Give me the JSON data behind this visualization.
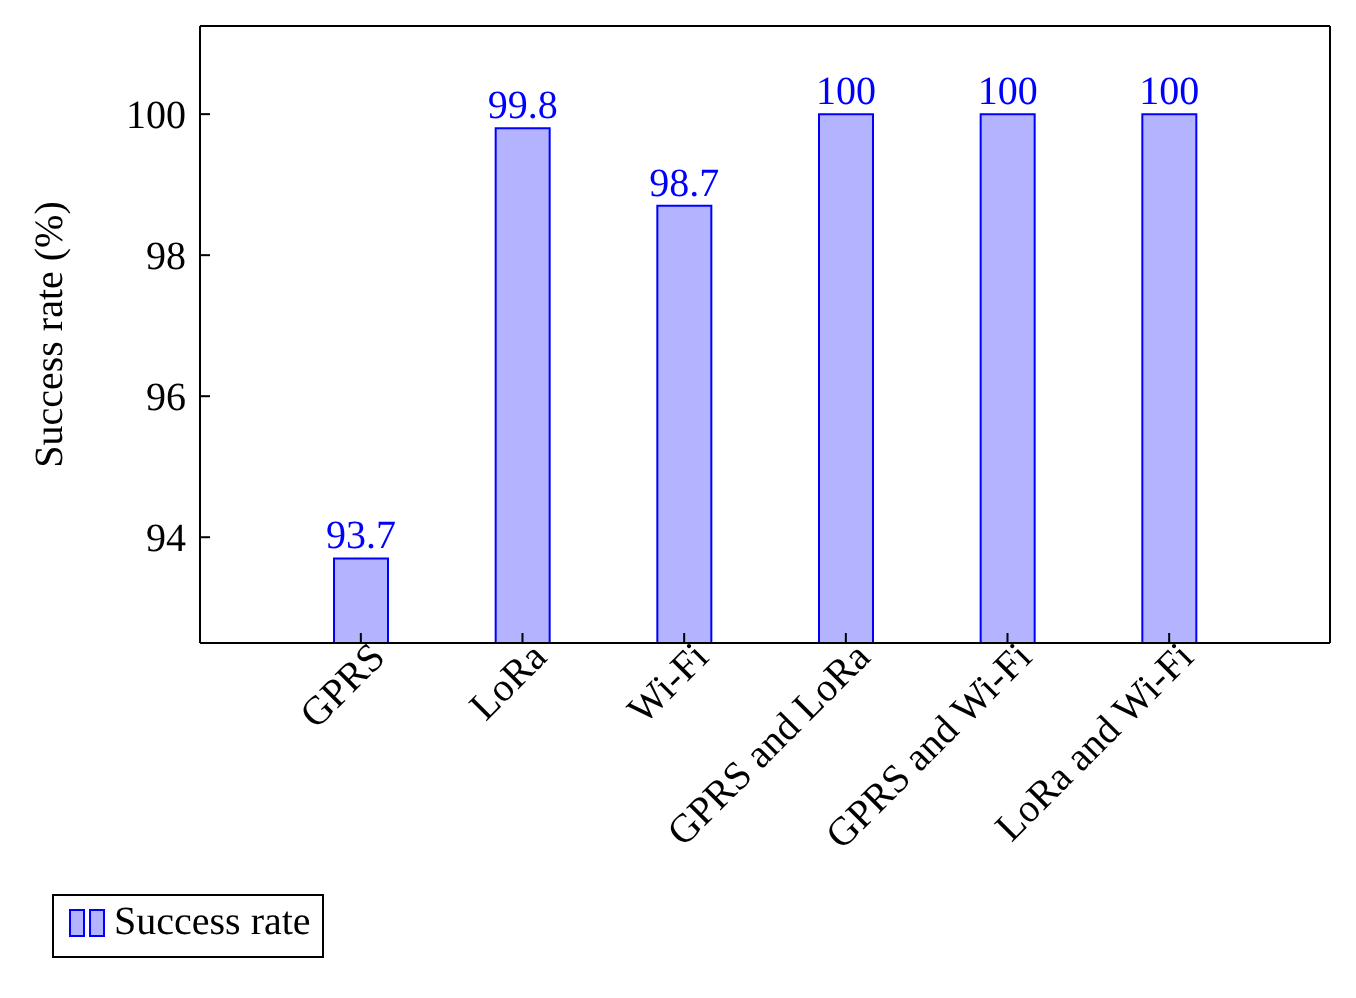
{
  "chart_data": {
    "type": "bar",
    "ylabel": "Success rate (%)",
    "categories": [
      "GPRS",
      "LoRa",
      "Wi-Fi",
      "GPRS and LoRa",
      "GPRS and Wi-Fi",
      "LoRa and Wi-Fi"
    ],
    "series": [
      {
        "name": "Success rate",
        "color": "#b3b3ff",
        "values": [
          93.7,
          99.8,
          98.7,
          100,
          100,
          100
        ]
      }
    ],
    "ylim": [
      92.5,
      101.25
    ],
    "yticks": [
      94,
      96,
      98,
      100
    ],
    "data_labels": true,
    "grid": false,
    "legend": "bottom left"
  }
}
